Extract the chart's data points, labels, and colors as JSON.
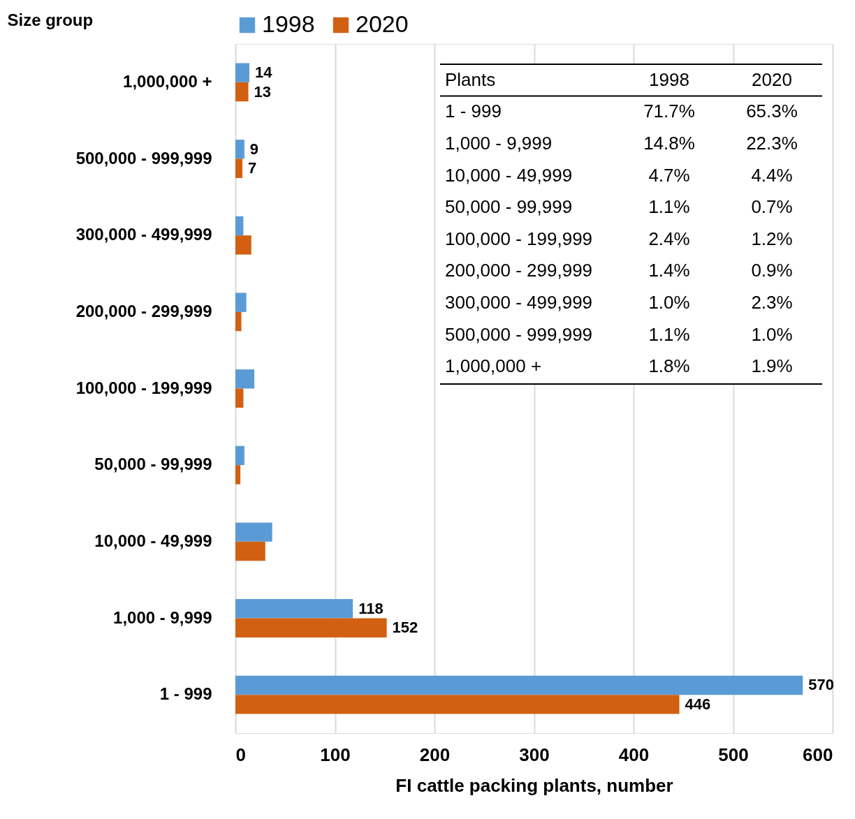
{
  "chart_data": {
    "type": "bar",
    "orientation": "horizontal",
    "ylabel": "Size group",
    "xlabel": "FI cattle packing plants, number",
    "categories": [
      "1,000,000 +",
      "500,000 - 999,999",
      "300,000 - 499,999",
      "200,000 - 299,999",
      "100,000 - 199,999",
      "50,000 - 99,999",
      "10,000 - 49,999",
      "1,000 - 9,999",
      "1 - 999"
    ],
    "series": [
      {
        "name": "1998",
        "color": "#5b9bd5",
        "values": [
          14,
          9,
          8,
          11,
          19,
          9,
          37,
          118,
          570
        ],
        "value_labels": [
          "14",
          "9",
          null,
          null,
          null,
          null,
          null,
          "118",
          "570"
        ]
      },
      {
        "name": "2020",
        "color": "#d26012",
        "values": [
          13,
          7,
          16,
          6,
          8,
          5,
          30,
          152,
          446
        ],
        "value_labels": [
          "13",
          "7",
          null,
          null,
          null,
          null,
          null,
          "152",
          "446"
        ]
      }
    ],
    "xlim": [
      0,
      600
    ],
    "xticks": [
      0,
      100,
      200,
      300,
      400,
      500,
      600
    ],
    "grid": "x",
    "legend": "top",
    "annotations": [
      "Plants",
      "1998",
      "2020",
      "1 - 999",
      "71.7%",
      "65.3%",
      "1,000 - 9,999",
      "14.8%",
      "22.3%",
      "10,000 - 49,999",
      "4.7%",
      "4.4%",
      "50,000 - 99,999",
      "1.1%",
      "0.7%",
      "100,000 - 199,999",
      "2.4%",
      "1.2%",
      "200,000 - 299,999",
      "1.4%",
      "0.9%",
      "300,000 - 499,999",
      "1.0%",
      "2.3%",
      "500,000 - 999,999",
      "1.1%",
      "1.0%",
      "1,000,000 +",
      "1.8%",
      "1.9%"
    ]
  }
}
